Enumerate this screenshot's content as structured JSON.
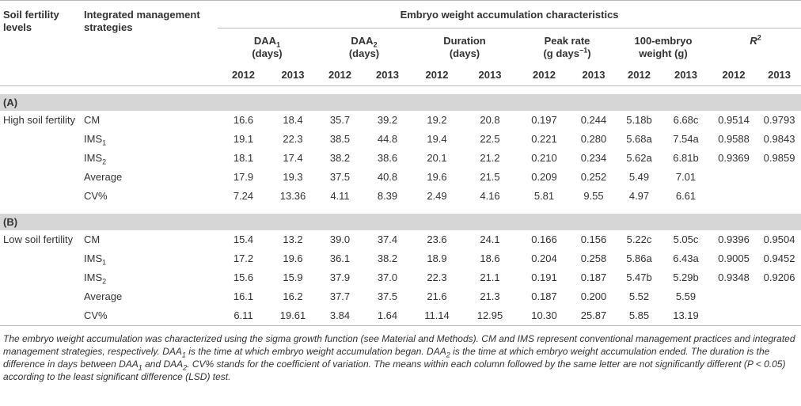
{
  "header": {
    "level": "Soil fertility levels",
    "strategy": "Integrated management strategies",
    "group": "Embryo weight accumulation characteristics",
    "metrics": [
      {
        "lines": [
          [
            "DAA",
            {
              "sub": "1"
            }
          ],
          [
            "(days)"
          ]
        ],
        "years": [
          "2012",
          "2013"
        ]
      },
      {
        "lines": [
          [
            "DAA",
            {
              "sub": "2"
            }
          ],
          [
            "(days)"
          ]
        ],
        "years": [
          "2012",
          "2013"
        ]
      },
      {
        "lines": [
          [
            "Duration"
          ],
          [
            "(days)"
          ]
        ],
        "years": [
          "2012",
          "2013"
        ]
      },
      {
        "lines": [
          [
            "Peak rate"
          ],
          [
            "(g days",
            {
              "sup": "−1"
            },
            ")"
          ]
        ],
        "years": [
          "2012",
          "2013"
        ]
      },
      {
        "lines": [
          [
            "100-embryo"
          ],
          [
            "weight (g)"
          ]
        ],
        "years": [
          "2012",
          "2013"
        ]
      },
      {
        "lines": [
          [
            {
              "em": "R"
            },
            {
              "sup": "2"
            }
          ]
        ],
        "years": [
          "2012",
          "2013"
        ]
      }
    ]
  },
  "sections": [
    {
      "label": "(A)",
      "rows": [
        {
          "level": "High soil fertility",
          "strategy": [
            "CM"
          ],
          "values": [
            "16.6",
            "18.4",
            "35.7",
            "39.2",
            "19.2",
            "20.8",
            "0.197",
            "0.244",
            "5.18b",
            "6.68c",
            "0.9514",
            "0.9793"
          ]
        },
        {
          "strategy": [
            "IMS",
            {
              "sub": "1"
            }
          ],
          "values": [
            "19.1",
            "22.3",
            "38.5",
            "44.8",
            "19.4",
            "22.5",
            "0.221",
            "0.280",
            "5.68a",
            "7.54a",
            "0.9588",
            "0.9843"
          ]
        },
        {
          "strategy": [
            "IMS",
            {
              "sub": "2"
            }
          ],
          "values": [
            "18.1",
            "17.4",
            "38.2",
            "38.6",
            "20.1",
            "21.2",
            "0.210",
            "0.234",
            "5.62a",
            "6.81b",
            "0.9369",
            "0.9859"
          ]
        },
        {
          "strategy": [
            "Average"
          ],
          "values": [
            "17.9",
            "19.3",
            "37.5",
            "40.8",
            "19.6",
            "21.5",
            "0.209",
            "0.252",
            "5.49",
            "7.01"
          ]
        },
        {
          "strategy": [
            "CV%"
          ],
          "values": [
            "7.24",
            "13.36",
            "4.11",
            "8.39",
            "2.49",
            "4.16",
            "5.81",
            "9.55",
            "4.97",
            "6.61"
          ]
        }
      ]
    },
    {
      "label": "(B)",
      "rows": [
        {
          "level": "Low soil fertility",
          "strategy": [
            "CM"
          ],
          "values": [
            "15.4",
            "13.2",
            "39.0",
            "37.4",
            "23.6",
            "24.1",
            "0.166",
            "0.156",
            "5.22c",
            "5.05c",
            "0.9396",
            "0.9504"
          ]
        },
        {
          "strategy": [
            "IMS",
            {
              "sub": "1"
            }
          ],
          "values": [
            "17.2",
            "19.6",
            "36.1",
            "38.2",
            "18.9",
            "18.6",
            "0.204",
            "0.258",
            "5.86a",
            "6.43a",
            "0.9005",
            "0.9452"
          ]
        },
        {
          "strategy": [
            "IMS",
            {
              "sub": "2"
            }
          ],
          "values": [
            "15.6",
            "15.9",
            "37.9",
            "37.0",
            "22.3",
            "21.1",
            "0.191",
            "0.187",
            "5.47b",
            "5.29b",
            "0.9348",
            "0.9206"
          ]
        },
        {
          "strategy": [
            "Average"
          ],
          "values": [
            "16.1",
            "16.2",
            "37.7",
            "37.5",
            "21.6",
            "21.3",
            "0.187",
            "0.200",
            "5.52",
            "5.59"
          ]
        },
        {
          "strategy": [
            "CV%"
          ],
          "values": [
            "6.11",
            "19.61",
            "3.84",
            "1.64",
            "11.14",
            "12.95",
            "10.30",
            "25.87",
            "5.85",
            "13.19"
          ]
        }
      ]
    }
  ],
  "footnote": [
    "The embryo weight accumulation was characterized using the sigma growth function (see Material and Methods). CM and IMS represent conventional management practices and integrated management strategies, respectively. DAA",
    {
      "sub": "1"
    },
    " is the time at which embryo weight accumulation began. DAA",
    {
      "sub": "2"
    },
    " is the time at which embryo weight accumulation ended. The duration is the difference in days between DAA",
    {
      "sub": "1"
    },
    " and DAA",
    {
      "sub": "2"
    },
    ". CV% stands for the coefficient of variation. The means within each column followed by the same letter are not significantly different (P < 0.05) according to the least significant difference (LSD) test."
  ]
}
